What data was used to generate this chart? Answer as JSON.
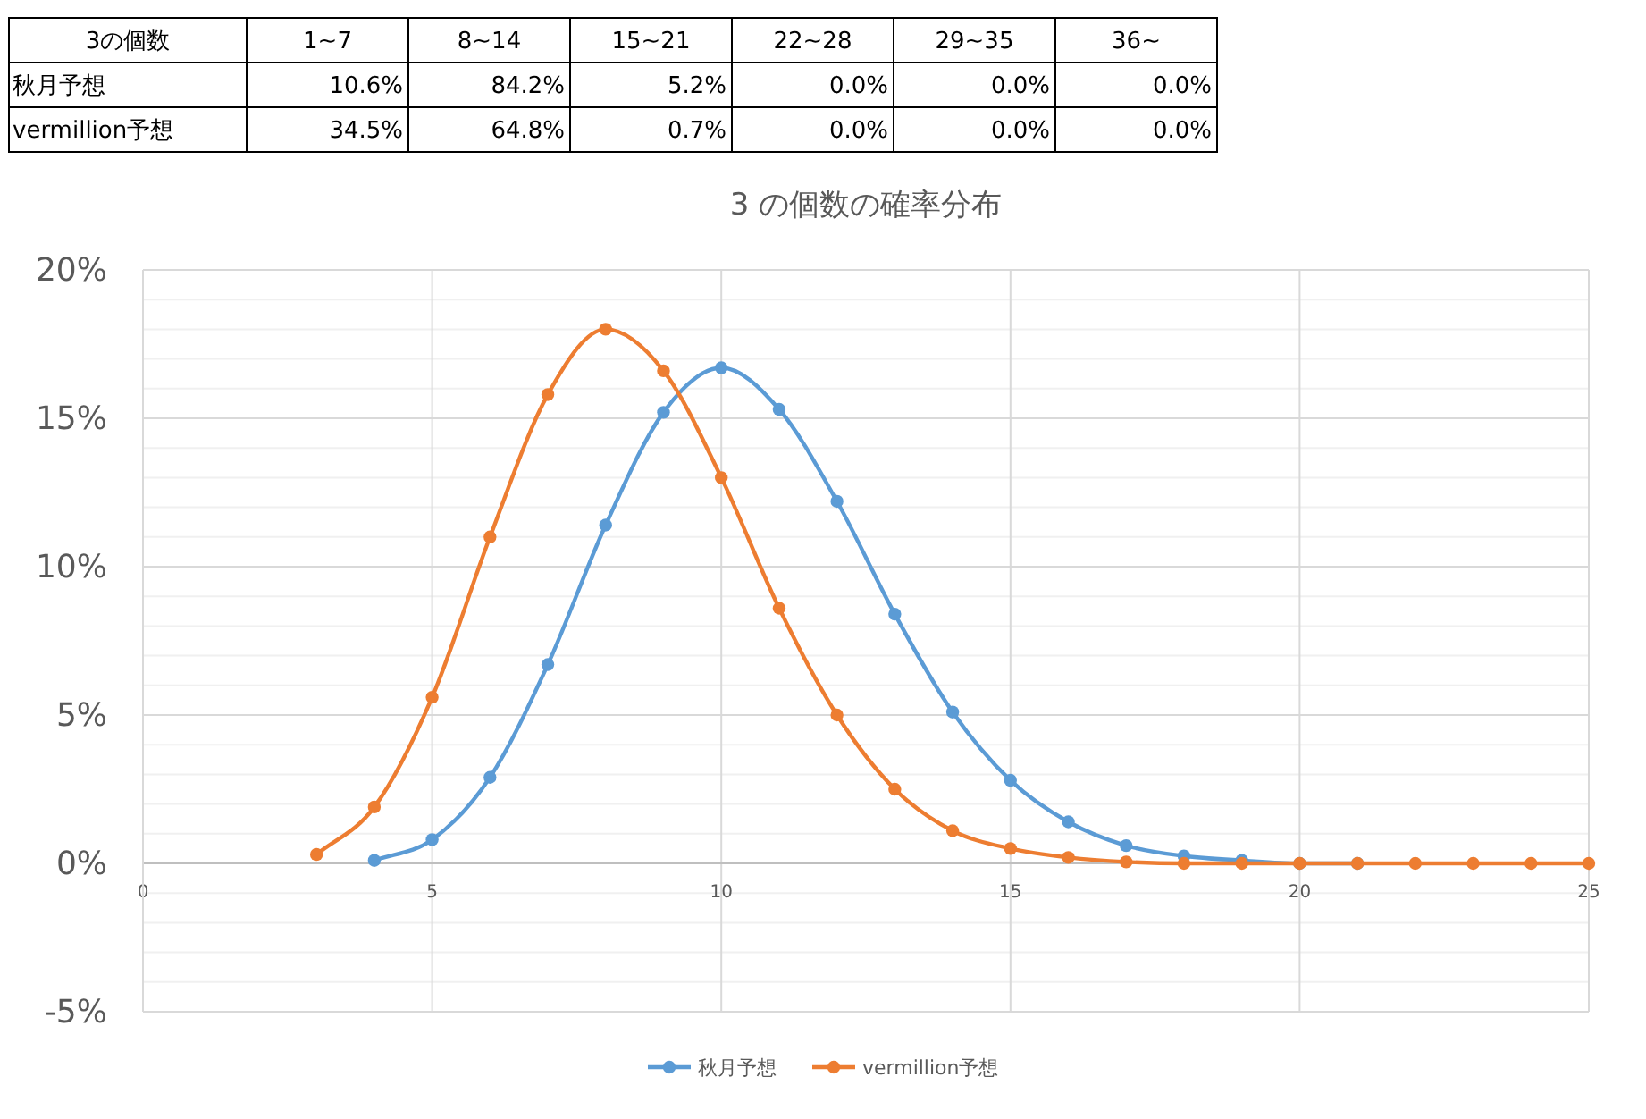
{
  "chart_data": [
    {
      "type": "other",
      "title": "3の個数",
      "categories": [
        "1~7",
        "8~14",
        "15~21",
        "22~28",
        "29~35",
        "36~"
      ],
      "series": [
        {
          "name": "秋月予想",
          "values": [
            10.6,
            84.2,
            5.2,
            0.0,
            0.0,
            0.0
          ],
          "value_labels": [
            "10.6%",
            "84.2%",
            "5.2%",
            "0.0%",
            "0.0%",
            "0.0%"
          ]
        },
        {
          "name": "vermillion予想",
          "values": [
            34.5,
            64.8,
            0.7,
            0.0,
            0.0,
            0.0
          ],
          "value_labels": [
            "34.5%",
            "64.8%",
            "0.7%",
            "0.0%",
            "0.0%",
            "0.0%"
          ]
        }
      ]
    },
    {
      "type": "line",
      "title": "3 の個数の確率分布",
      "legend": "bottom",
      "grid": true,
      "marker": "circle",
      "line_style": "solid",
      "xlim": [
        0,
        25
      ],
      "xticks": [
        0,
        5,
        10,
        15,
        20,
        25
      ],
      "ylim": [
        -5,
        20
      ],
      "yticks": [
        {
          "value": -5,
          "label": "-5%"
        },
        {
          "value": -4,
          "label": null
        },
        {
          "value": -3,
          "label": null
        },
        {
          "value": -2,
          "label": null
        },
        {
          "value": -1,
          "label": null
        },
        {
          "value": 0,
          "label": "0%"
        },
        {
          "value": 1,
          "label": null
        },
        {
          "value": 2,
          "label": null
        },
        {
          "value": 3,
          "label": null
        },
        {
          "value": 4,
          "label": null
        },
        {
          "value": 5,
          "label": "5%"
        },
        {
          "value": 6,
          "label": null
        },
        {
          "value": 7,
          "label": null
        },
        {
          "value": 8,
          "label": null
        },
        {
          "value": 9,
          "label": null
        },
        {
          "value": 10,
          "label": "10%"
        },
        {
          "value": 11,
          "label": null
        },
        {
          "value": 12,
          "label": null
        },
        {
          "value": 13,
          "label": null
        },
        {
          "value": 14,
          "label": null
        },
        {
          "value": 15,
          "label": "15%"
        },
        {
          "value": 16,
          "label": null
        },
        {
          "value": 17,
          "label": null
        },
        {
          "value": 18,
          "label": null
        },
        {
          "value": 19,
          "label": null
        },
        {
          "value": 20,
          "label": "20%"
        }
      ],
      "series": [
        {
          "name": "秋月予想",
          "color": "#5b9bd5",
          "x": [
            4,
            5,
            6,
            7,
            8,
            9,
            10,
            11,
            12,
            13,
            14,
            15,
            16,
            17,
            18,
            19,
            20,
            21
          ],
          "values": [
            0.1,
            0.8,
            2.9,
            6.7,
            11.4,
            15.2,
            16.7,
            15.3,
            12.2,
            8.4,
            5.1,
            2.8,
            1.4,
            0.6,
            0.25,
            0.1,
            0,
            0
          ]
        },
        {
          "name": "vermillion予想",
          "color": "#ed7d31",
          "x": [
            3,
            4,
            5,
            6,
            7,
            8,
            9,
            10,
            11,
            12,
            13,
            14,
            15,
            16,
            17,
            18,
            19,
            20,
            21,
            22,
            23,
            24,
            25
          ],
          "values": [
            0.3,
            1.9,
            5.6,
            11.0,
            15.8,
            18.0,
            16.6,
            13.0,
            8.6,
            5.0,
            2.5,
            1.1,
            0.5,
            0.2,
            0.05,
            0,
            0,
            0,
            0,
            0,
            0,
            0,
            0
          ]
        }
      ]
    }
  ]
}
